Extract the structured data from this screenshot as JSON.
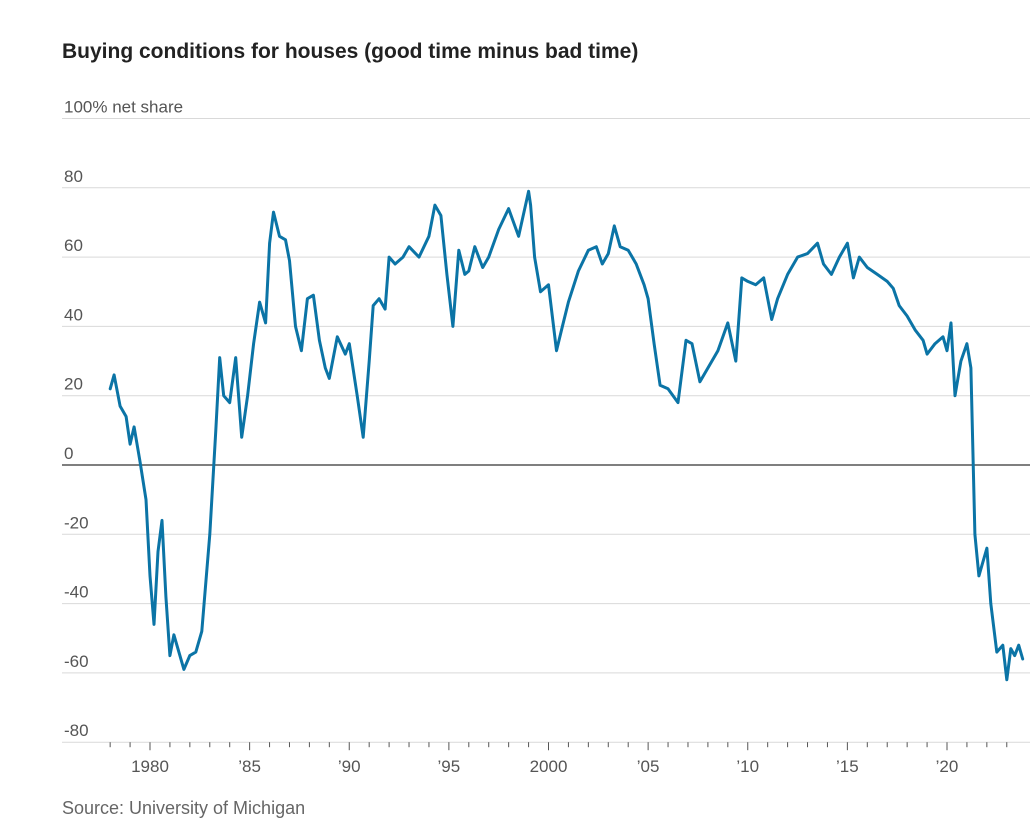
{
  "chart_data": {
    "type": "line",
    "title": "Buying conditions for houses (good time minus bad time)",
    "ylabel": "100% net share",
    "source": "Source: University of Michigan",
    "ylim": [
      -80,
      100
    ],
    "xlim": [
      1977.5,
      2024.0
    ],
    "y_ticks": [
      {
        "value": 100,
        "label": "100% net share"
      },
      {
        "value": 80,
        "label": "80"
      },
      {
        "value": 60,
        "label": "60"
      },
      {
        "value": 40,
        "label": "40"
      },
      {
        "value": 20,
        "label": "20"
      },
      {
        "value": 0,
        "label": "0"
      },
      {
        "value": -20,
        "label": "-20"
      },
      {
        "value": -40,
        "label": "-40"
      },
      {
        "value": -60,
        "label": "-60"
      },
      {
        "value": -80,
        "label": "-80"
      }
    ],
    "x_ticks": [
      {
        "value": 1980,
        "label": "1980"
      },
      {
        "value": 1985,
        "label": "’85"
      },
      {
        "value": 1990,
        "label": "’90"
      },
      {
        "value": 1995,
        "label": "’95"
      },
      {
        "value": 2000,
        "label": "2000"
      },
      {
        "value": 2005,
        "label": "’05"
      },
      {
        "value": 2010,
        "label": "’10"
      },
      {
        "value": 2015,
        "label": "’15"
      },
      {
        "value": 2020,
        "label": "’20"
      }
    ],
    "colors": {
      "line": "#0b74a6",
      "grid": "#d9d9d9",
      "zero_line": "#333333"
    },
    "series": [
      {
        "x": [
          1978.0,
          1978.2,
          1978.5,
          1978.8,
          1979.0,
          1979.2,
          1979.5,
          1979.8,
          1980.0,
          1980.2,
          1980.4,
          1980.6,
          1980.8,
          1981.0,
          1981.2,
          1981.5,
          1981.7,
          1982.0,
          1982.3,
          1982.6,
          1983.0,
          1983.3,
          1983.5,
          1983.7,
          1984.0,
          1984.3,
          1984.6,
          1984.9,
          1985.2,
          1985.5,
          1985.8,
          1986.0,
          1986.2,
          1986.5,
          1986.8,
          1987.0,
          1987.3,
          1987.6,
          1987.9,
          1988.2,
          1988.5,
          1988.8,
          1989.0,
          1989.4,
          1989.8,
          1990.0,
          1990.4,
          1990.7,
          1991.0,
          1991.2,
          1991.5,
          1991.8,
          1992.0,
          1992.3,
          1992.7,
          1993.0,
          1993.5,
          1994.0,
          1994.3,
          1994.6,
          1994.9,
          1995.2,
          1995.5,
          1995.8,
          1996.0,
          1996.3,
          1996.7,
          1997.0,
          1997.5,
          1998.0,
          1998.5,
          1999.0,
          1999.1,
          1999.3,
          1999.6,
          2000.0,
          2000.4,
          2000.7,
          2001.0,
          2001.5,
          2002.0,
          2002.4,
          2002.7,
          2003.0,
          2003.3,
          2003.6,
          2004.0,
          2004.4,
          2004.8,
          2005.0,
          2005.3,
          2005.6,
          2006.0,
          2006.5,
          2006.9,
          2007.2,
          2007.6,
          2008.0,
          2008.5,
          2009.0,
          2009.4,
          2009.7,
          2010.0,
          2010.4,
          2010.8,
          2011.2,
          2011.5,
          2012.0,
          2012.5,
          2013.0,
          2013.5,
          2013.8,
          2014.2,
          2014.6,
          2015.0,
          2015.3,
          2015.6,
          2016.0,
          2016.5,
          2017.0,
          2017.3,
          2017.6,
          2018.0,
          2018.4,
          2018.8,
          2019.0,
          2019.4,
          2019.8,
          2020.0,
          2020.2,
          2020.4,
          2020.7,
          2021.0,
          2021.2,
          2021.4,
          2021.6,
          2021.8,
          2022.0,
          2022.2,
          2022.5,
          2022.8,
          2023.0,
          2023.2,
          2023.4,
          2023.6,
          2023.8
        ],
        "y": [
          22,
          26,
          17,
          14,
          6,
          11,
          1,
          -10,
          -32,
          -46,
          -25,
          -16,
          -38,
          -55,
          -49,
          -55,
          -59,
          -55,
          -54,
          -48,
          -20,
          10,
          31,
          20,
          18,
          31,
          8,
          20,
          35,
          47,
          41,
          64,
          73,
          66,
          65,
          59,
          40,
          33,
          48,
          49,
          36,
          28,
          25,
          37,
          32,
          35,
          20,
          8,
          30,
          46,
          48,
          45,
          60,
          58,
          60,
          63,
          60,
          66,
          75,
          72,
          55,
          40,
          62,
          55,
          56,
          63,
          57,
          60,
          68,
          74,
          66,
          79,
          75,
          60,
          50,
          52,
          33,
          40,
          47,
          56,
          62,
          63,
          58,
          61,
          69,
          63,
          62,
          58,
          52,
          48,
          35,
          23,
          22,
          18,
          36,
          35,
          24,
          28,
          33,
          41,
          30,
          54,
          53,
          52,
          54,
          42,
          48,
          55,
          60,
          61,
          64,
          58,
          55,
          60,
          64,
          54,
          60,
          57,
          55,
          53,
          51,
          46,
          43,
          39,
          36,
          32,
          35,
          37,
          33,
          41,
          20,
          30,
          35,
          28,
          -20,
          -32,
          -28,
          -24,
          -40,
          -54,
          -52,
          -62,
          -53,
          -55,
          -52,
          -56
        ]
      }
    ]
  }
}
